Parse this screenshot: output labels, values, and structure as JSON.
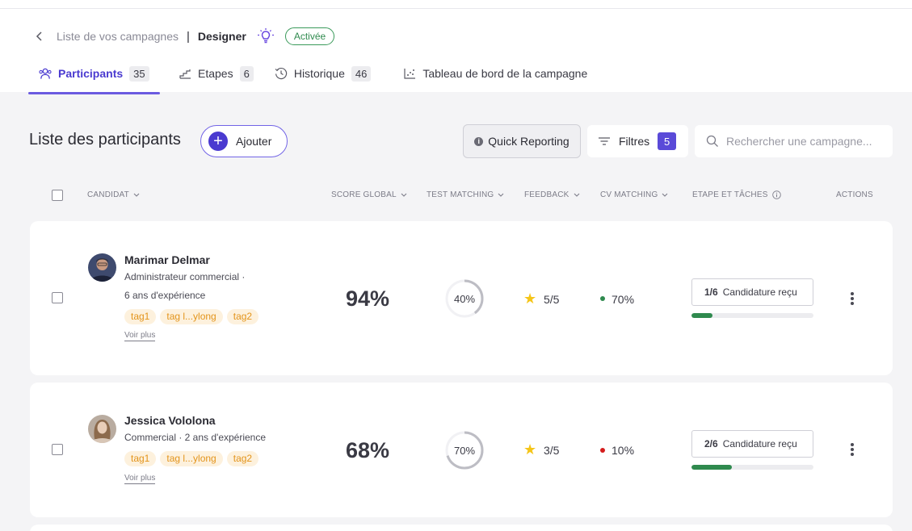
{
  "breadcrumb": {
    "back_link": "Liste de vos campagnes",
    "separator": "|",
    "current": "Designer",
    "status": "Activée"
  },
  "tabs": [
    {
      "label": "Participants",
      "count": "35",
      "icon": "users-icon"
    },
    {
      "label": "Etapes",
      "count": "6",
      "icon": "steps-icon"
    },
    {
      "label": "Historique",
      "count": "46",
      "icon": "history-icon"
    },
    {
      "label": "Tableau de bord de la campagne",
      "count": "",
      "icon": "dashboard-icon"
    }
  ],
  "toolbar": {
    "title": "Liste des participants",
    "add_label": "Ajouter",
    "quick_reporting_label": "Quick Reporting",
    "filters_label": "Filtres",
    "filters_count": "5",
    "search_placeholder": "Rechercher une campagne..."
  },
  "columns": {
    "candidat": "CANDIDAT",
    "score_global": "SCORE GLOBAL",
    "test_matching": "TEST MATCHING",
    "feedback": "FEEDBACK",
    "cv_matching": "CV MATCHING",
    "etape": "ETAPE ET TÂCHES",
    "actions": "ACTIONS"
  },
  "participants": [
    {
      "name": "Marimar Delmar",
      "role_line1": "Administrateur commercial ·",
      "role_line2": "6 ans d'expérience",
      "tags": [
        "tag1",
        "tag l...ylong",
        "tag2"
      ],
      "more": "Voir plus",
      "score": "94%",
      "test_matching": 40,
      "test_matching_label": "40%",
      "feedback": "5/5",
      "cv_matching": "70%",
      "cv_status_color": "#2f8a4e",
      "stage_fraction": "1/6",
      "stage_label": "Candidature reçu",
      "stage_progress": 0.17
    },
    {
      "name": "Jessica Vololona",
      "role_line1": "Commercial · 2 ans d'expérience",
      "role_line2": "",
      "tags": [
        "tag1",
        "tag l...ylong",
        "tag2"
      ],
      "more": "Voir plus",
      "score": "68%",
      "test_matching": 70,
      "test_matching_label": "70%",
      "feedback": "3/5",
      "cv_matching": "10%",
      "cv_status_color": "#d41c1c",
      "stage_fraction": "2/6",
      "stage_label": "Candidature reçu",
      "stage_progress": 0.33
    }
  ],
  "colors": {
    "accent": "#4a3ad0",
    "status_green": "#2f8a4e",
    "tag_text": "#e3941b",
    "tag_bg": "#fdf1dd",
    "star": "#f5c518"
  }
}
